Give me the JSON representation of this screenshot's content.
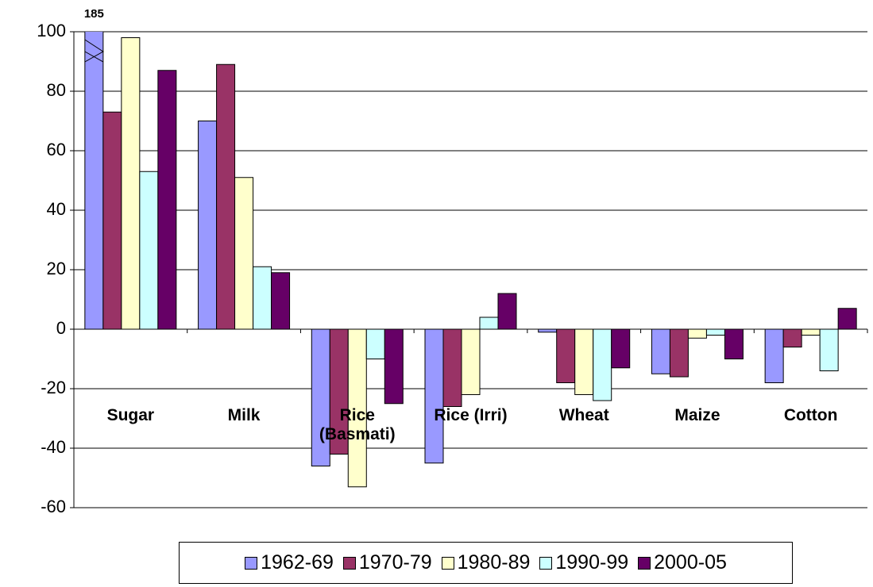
{
  "chart_data": {
    "type": "bar",
    "categories": [
      "Sugar",
      "Milk",
      "Rice (Basmati)",
      "Rice (Irri)",
      "Wheat",
      "Maize",
      "Cotton"
    ],
    "series": [
      {
        "name": "1962-69",
        "color": "#9999ff",
        "values": [
          185,
          70,
          -46,
          -45,
          -1,
          -15,
          -18
        ],
        "value_labels": [
          "185",
          null,
          null,
          null,
          null,
          null,
          null
        ]
      },
      {
        "name": "1970-79",
        "color": "#993366",
        "values": [
          73,
          89,
          -42,
          -26,
          -18,
          -16,
          -6
        ]
      },
      {
        "name": "1980-89",
        "color": "#ffffcc",
        "values": [
          98,
          51,
          -53,
          -22,
          -22,
          -3,
          -2
        ]
      },
      {
        "name": "1990-99",
        "color": "#ccffff",
        "values": [
          53,
          21,
          -10,
          4,
          -24,
          -2,
          -14
        ]
      },
      {
        "name": "2000-05",
        "color": "#660066",
        "values": [
          87,
          19,
          -25,
          12,
          -13,
          -10,
          7
        ]
      }
    ],
    "ylim": [
      -60,
      100
    ],
    "yticks": [
      -60,
      -40,
      -20,
      0,
      20,
      40,
      60,
      80,
      100
    ],
    "grid": true
  }
}
